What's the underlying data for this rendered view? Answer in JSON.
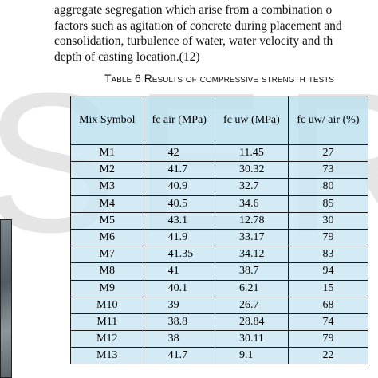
{
  "watermark": "SER",
  "paragraph": [
    "aggregate segregation which arise from a combination o",
    "factors such as agitation of concrete during placement and",
    "consolidation, turbulence of water, water velocity and th",
    "depth of casting location.(12)"
  ],
  "table": {
    "caption": "Table 6 Results of compressive strength tests",
    "header": [
      "Mix Symbol",
      "fc air (MPa)",
      "fc uw (MPa)",
      "fc uw/ air (%)"
    ],
    "rows": [
      [
        "M1",
        "42",
        "11.45",
        "27"
      ],
      [
        "M2",
        "41.7",
        "30.32",
        "73"
      ],
      [
        "M3",
        "40.9",
        "32.7",
        "80"
      ],
      [
        "M4",
        "40.5",
        "34.6",
        "85"
      ],
      [
        "M5",
        "43.1",
        "12.78",
        "30"
      ],
      [
        "M6",
        "41.9",
        "33.17",
        "79"
      ],
      [
        "M7",
        "41.35",
        "34.12",
        "83"
      ],
      [
        "M8",
        "41",
        "38.7",
        "94"
      ],
      [
        "M9",
        "40.1",
        "6.21",
        "15"
      ],
      [
        "M10",
        "39",
        "26.7",
        "68"
      ],
      [
        "M11",
        "38.8",
        "28.84",
        "74"
      ],
      [
        "M12",
        "38",
        "30.11",
        "79"
      ],
      [
        "M13",
        "41.7",
        "9.1",
        "22"
      ]
    ]
  }
}
